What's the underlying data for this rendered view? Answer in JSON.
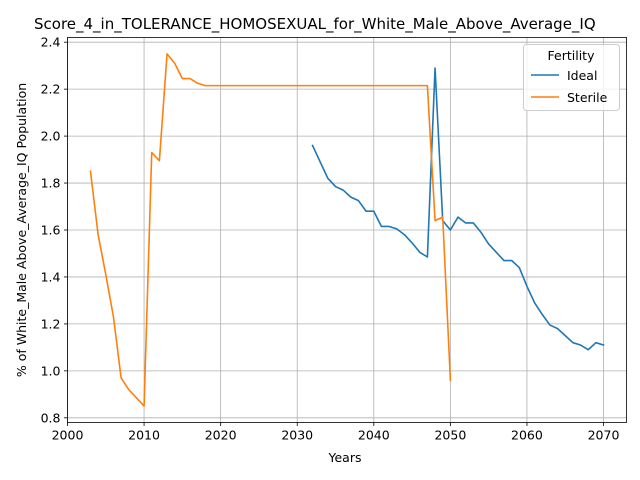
{
  "chart_data": {
    "type": "line",
    "title": "Score_4_in_TOLERANCE_HOMOSEXUAL_for_White_Male_Above_Average_IQ",
    "xlabel": "Years",
    "ylabel": "% of White_Male Above_Average_IQ Population",
    "xlim": [
      2000,
      2073
    ],
    "ylim": [
      0.78,
      2.42
    ],
    "xticks": [
      2000,
      2010,
      2020,
      2030,
      2040,
      2050,
      2060,
      2070
    ],
    "yticks": [
      0.8,
      1.0,
      1.2,
      1.4,
      1.6,
      1.8,
      2.0,
      2.2,
      2.4
    ],
    "grid": true,
    "legend": {
      "title": "Fertility",
      "placement": "top-right"
    },
    "series": [
      {
        "name": "Ideal",
        "color": "#1f77b4",
        "x": [
          2032,
          2033,
          2034,
          2035,
          2036,
          2037,
          2038,
          2039,
          2040,
          2041,
          2042,
          2043,
          2044,
          2045,
          2046,
          2047,
          2048,
          2049,
          2050,
          2051,
          2052,
          2053,
          2054,
          2055,
          2056,
          2057,
          2058,
          2059,
          2060,
          2061,
          2062,
          2063,
          2064,
          2065,
          2066,
          2067,
          2068,
          2069,
          2070
        ],
        "y": [
          1.96,
          1.89,
          1.82,
          1.785,
          1.77,
          1.74,
          1.725,
          1.68,
          1.68,
          1.615,
          1.615,
          1.605,
          1.58,
          1.545,
          1.505,
          1.485,
          2.29,
          1.64,
          1.6,
          1.655,
          1.63,
          1.63,
          1.59,
          1.54,
          1.505,
          1.47,
          1.47,
          1.44,
          1.36,
          1.29,
          1.24,
          1.195,
          1.18,
          1.15,
          1.12,
          1.11,
          1.09,
          1.12,
          1.11
        ]
      },
      {
        "name": "Sterile",
        "color": "#ff7f0e",
        "x": [
          2003,
          2004,
          2005,
          2006,
          2007,
          2008,
          2009,
          2010,
          2011,
          2012,
          2013,
          2014,
          2015,
          2016,
          2017,
          2018,
          2019,
          2020,
          2025,
          2030,
          2035,
          2040,
          2045,
          2047,
          2048,
          2049,
          2050
        ],
        "y": [
          1.85,
          1.58,
          1.41,
          1.23,
          0.97,
          0.92,
          0.885,
          0.85,
          1.93,
          1.895,
          2.35,
          2.31,
          2.245,
          2.245,
          2.225,
          2.215,
          2.215,
          2.215,
          2.215,
          2.215,
          2.215,
          2.215,
          2.215,
          2.215,
          1.64,
          1.655,
          0.96
        ]
      }
    ]
  }
}
